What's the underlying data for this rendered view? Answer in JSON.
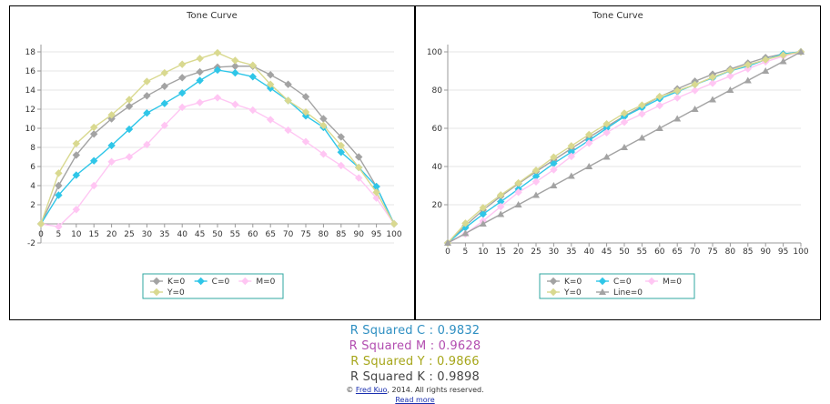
{
  "chart_data": [
    {
      "type": "line",
      "title": "Tone Curve",
      "x": [
        0,
        5,
        10,
        15,
        20,
        25,
        30,
        35,
        40,
        45,
        50,
        55,
        60,
        65,
        70,
        75,
        80,
        85,
        90,
        95,
        100
      ],
      "ylim": [
        -2,
        18
      ],
      "yticks": [
        -2,
        2,
        4,
        6,
        8,
        10,
        12,
        14,
        16,
        18
      ],
      "grid": true,
      "legend_position": "bottom-center",
      "series": [
        {
          "name": "K=0",
          "color": "#a3a3a3",
          "marker": "diamond",
          "values": [
            0,
            4,
            7.2,
            9.4,
            11,
            12.3,
            13.4,
            14.4,
            15.3,
            15.9,
            16.4,
            16.5,
            16.5,
            15.6,
            14.6,
            13.3,
            11,
            9.1,
            7,
            3.9,
            0
          ]
        },
        {
          "name": "C=0",
          "color": "#2fc6e8",
          "marker": "diamond",
          "values": [
            0,
            3,
            5.1,
            6.6,
            8.2,
            9.9,
            11.6,
            12.6,
            13.7,
            15,
            16.1,
            15.8,
            15.4,
            14.2,
            12.9,
            11.3,
            10.1,
            7.5,
            5.9,
            3.9,
            0
          ]
        },
        {
          "name": "M=0",
          "color": "#ffc6f3",
          "marker": "diamond",
          "values": [
            0,
            -0.3,
            1.5,
            4,
            6.5,
            7,
            8.3,
            10.3,
            12.2,
            12.7,
            13.2,
            12.5,
            11.9,
            10.9,
            9.8,
            8.6,
            7.3,
            6.1,
            4.8,
            2.7,
            0
          ]
        },
        {
          "name": "Y=0",
          "color": "#d9d990",
          "marker": "diamond",
          "values": [
            0,
            5.3,
            8.4,
            10.1,
            11.4,
            13,
            14.9,
            15.8,
            16.7,
            17.3,
            17.9,
            17.1,
            16.6,
            14.6,
            12.9,
            11.7,
            10.3,
            8.2,
            5.9,
            3.3,
            0
          ]
        }
      ]
    },
    {
      "type": "line",
      "title": "Tone Curve",
      "x": [
        0,
        5,
        10,
        15,
        20,
        25,
        30,
        35,
        40,
        45,
        50,
        55,
        60,
        65,
        70,
        75,
        80,
        85,
        90,
        95,
        100
      ],
      "ylim": [
        0,
        100
      ],
      "yticks": [
        20,
        40,
        60,
        80,
        100
      ],
      "grid": true,
      "legend_position": "bottom-center",
      "series": [
        {
          "name": "K=0",
          "color": "#a3a3a3",
          "marker": "diamond",
          "values": [
            0,
            9,
            17.2,
            24.4,
            31,
            37.3,
            43.4,
            49.4,
            55.3,
            60.9,
            66.4,
            71.5,
            76.5,
            80.6,
            84.6,
            88.3,
            91,
            94.1,
            97,
            98.9,
            100
          ]
        },
        {
          "name": "C=0",
          "color": "#2fc6e8",
          "marker": "diamond",
          "values": [
            0,
            8,
            15.1,
            21.6,
            28.2,
            34.9,
            41.6,
            47.6,
            53.7,
            60,
            66.1,
            70.8,
            75.4,
            79.2,
            82.9,
            86.3,
            90.1,
            92.5,
            95.9,
            98.9,
            100
          ]
        },
        {
          "name": "M=0",
          "color": "#ffc6f3",
          "marker": "diamond",
          "values": [
            0,
            4.7,
            11.5,
            19,
            26.5,
            32,
            38.3,
            45.3,
            52.2,
            57.7,
            63.2,
            67.5,
            71.9,
            75.9,
            79.8,
            83.6,
            87.3,
            91.1,
            94.8,
            97.7,
            100
          ]
        },
        {
          "name": "Y=0",
          "color": "#d9d990",
          "marker": "diamond",
          "values": [
            0,
            10.3,
            18.4,
            25.1,
            31.4,
            38,
            44.9,
            50.8,
            56.7,
            62.3,
            67.9,
            72.1,
            76.6,
            79.6,
            82.9,
            86.7,
            90.3,
            93.2,
            95.9,
            98.3,
            100
          ]
        },
        {
          "name": "Line=0",
          "color": "#a3a3a3",
          "marker": "triangle",
          "values": [
            0,
            5,
            10,
            15,
            20,
            25,
            30,
            35,
            40,
            45,
            50,
            55,
            60,
            65,
            70,
            75,
            80,
            85,
            90,
            95,
            100
          ]
        }
      ]
    }
  ],
  "stats": [
    {
      "label": "R Squared C : 0.9832",
      "color": "#2e8fc2"
    },
    {
      "label": "R Squared M : 0.9628",
      "color": "#b24db0"
    },
    {
      "label": "R Squared Y : 0.9866",
      "color": "#a6a61a"
    },
    {
      "label": "R Squared K : 0.9898",
      "color": "#444444"
    }
  ],
  "footer": {
    "prefix": "© ",
    "author": "Fred Kuo",
    "suffix": ", 2014. All rights reserved.",
    "read_more": "Read more"
  }
}
